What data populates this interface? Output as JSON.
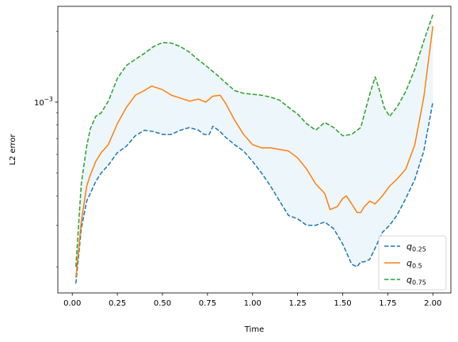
{
  "chart_data": {
    "type": "line",
    "title": "",
    "xlabel": "Time",
    "ylabel": "L2 error",
    "yscale": "log",
    "xlim": [
      -0.08,
      2.1
    ],
    "ylim": [
      0.000155,
      0.00255
    ],
    "grid": false,
    "legend_position": "lower-right",
    "x_ticks": [
      0.0,
      0.25,
      0.5,
      0.75,
      1.0,
      1.25,
      1.5,
      1.75,
      2.0
    ],
    "x_tick_labels": [
      "0.00",
      "0.25",
      "0.50",
      "0.75",
      "1.00",
      "1.25",
      "1.50",
      "1.75",
      "2.00"
    ],
    "y_major_ticks": [
      0.001
    ],
    "y_major_tick_labels": [
      "10^-3"
    ],
    "y_minor_ticks": [
      0.0002,
      0.0003,
      0.0004,
      0.0005,
      0.0006,
      0.0007,
      0.0008,
      0.0009,
      0.002
    ],
    "band": {
      "between": [
        "q0.25",
        "q0.75"
      ],
      "color": "#add8e6",
      "opacity": 0.22
    },
    "series": [
      {
        "name": "q0.25",
        "name_main": "q",
        "name_sub": "0.25",
        "color": "#1f77b4",
        "dash": "dashed",
        "x": [
          0.02,
          0.05,
          0.08,
          0.1,
          0.13,
          0.16,
          0.2,
          0.25,
          0.3,
          0.35,
          0.4,
          0.45,
          0.5,
          0.55,
          0.6,
          0.65,
          0.7,
          0.73,
          0.76,
          0.78,
          0.82,
          0.85,
          0.9,
          0.95,
          1.0,
          1.05,
          1.1,
          1.15,
          1.2,
          1.25,
          1.3,
          1.35,
          1.4,
          1.45,
          1.5,
          1.55,
          1.58,
          1.6,
          1.62,
          1.65,
          1.68,
          1.72,
          1.76,
          1.8,
          1.85,
          1.9,
          1.95,
          2.0
        ],
        "y": [
          0.00017,
          0.00029,
          0.00038,
          0.00041,
          0.00046,
          0.0005,
          0.00054,
          0.00061,
          0.00065,
          0.00072,
          0.00076,
          0.00075,
          0.00073,
          0.00073,
          0.00076,
          0.00078,
          0.00076,
          0.00073,
          0.00073,
          0.00079,
          0.00075,
          0.00071,
          0.00066,
          0.00062,
          0.00056,
          0.0005,
          0.00044,
          0.00038,
          0.00033,
          0.00032,
          0.0003,
          0.0003,
          0.00031,
          0.00029,
          0.00025,
          0.000205,
          0.0002,
          0.00021,
          0.00021,
          0.000215,
          0.00024,
          0.00028,
          0.0003,
          0.00033,
          0.00039,
          0.00047,
          0.00062,
          0.001
        ]
      },
      {
        "name": "q0.5",
        "name_main": "q",
        "name_sub": "0.5",
        "color": "#ff7f0e",
        "dash": "solid",
        "x": [
          0.02,
          0.05,
          0.08,
          0.1,
          0.13,
          0.16,
          0.2,
          0.25,
          0.3,
          0.35,
          0.4,
          0.44,
          0.5,
          0.55,
          0.6,
          0.65,
          0.7,
          0.74,
          0.78,
          0.82,
          0.85,
          0.9,
          0.95,
          1.0,
          1.05,
          1.1,
          1.15,
          1.2,
          1.25,
          1.3,
          1.35,
          1.4,
          1.43,
          1.47,
          1.5,
          1.52,
          1.55,
          1.58,
          1.6,
          1.62,
          1.65,
          1.68,
          1.72,
          1.76,
          1.8,
          1.85,
          1.9,
          1.95,
          2.0
        ],
        "y": [
          0.00018,
          0.00031,
          0.00044,
          0.00049,
          0.00056,
          0.00061,
          0.00066,
          0.00081,
          0.00095,
          0.00107,
          0.00112,
          0.00117,
          0.00113,
          0.00107,
          0.00104,
          0.00101,
          0.00103,
          0.001,
          0.00106,
          0.00107,
          0.00099,
          0.00084,
          0.00073,
          0.00066,
          0.00064,
          0.00064,
          0.00063,
          0.00062,
          0.00058,
          0.00052,
          0.00045,
          0.00041,
          0.00035,
          0.00036,
          0.00039,
          0.0004,
          0.00037,
          0.00034,
          0.00034,
          0.00036,
          0.00038,
          0.00037,
          0.0004,
          0.00044,
          0.00047,
          0.00052,
          0.00066,
          0.00105,
          0.0021
        ]
      },
      {
        "name": "q0.75",
        "name_main": "q",
        "name_sub": "0.75",
        "color": "#2ca02c",
        "dash": "dashed",
        "x": [
          0.02,
          0.05,
          0.08,
          0.1,
          0.13,
          0.16,
          0.2,
          0.25,
          0.3,
          0.35,
          0.4,
          0.45,
          0.5,
          0.55,
          0.6,
          0.65,
          0.7,
          0.75,
          0.8,
          0.85,
          0.9,
          0.95,
          1.0,
          1.05,
          1.1,
          1.15,
          1.2,
          1.25,
          1.3,
          1.35,
          1.4,
          1.45,
          1.5,
          1.55,
          1.6,
          1.65,
          1.68,
          1.7,
          1.73,
          1.76,
          1.8,
          1.85,
          1.9,
          1.95,
          2.0
        ],
        "y": [
          0.0002,
          0.00045,
          0.00065,
          0.00077,
          0.00087,
          0.0009,
          0.00101,
          0.00126,
          0.00143,
          0.00152,
          0.00161,
          0.00172,
          0.00179,
          0.00178,
          0.00172,
          0.00163,
          0.00151,
          0.00141,
          0.00131,
          0.00121,
          0.00112,
          0.00109,
          0.00108,
          0.00107,
          0.00105,
          0.00102,
          0.00095,
          0.00089,
          0.00081,
          0.00076,
          0.00082,
          0.00078,
          0.00072,
          0.00073,
          0.00078,
          0.00108,
          0.00128,
          0.00115,
          0.00095,
          0.00087,
          0.00095,
          0.00111,
          0.00138,
          0.00182,
          0.00235
        ]
      }
    ]
  }
}
